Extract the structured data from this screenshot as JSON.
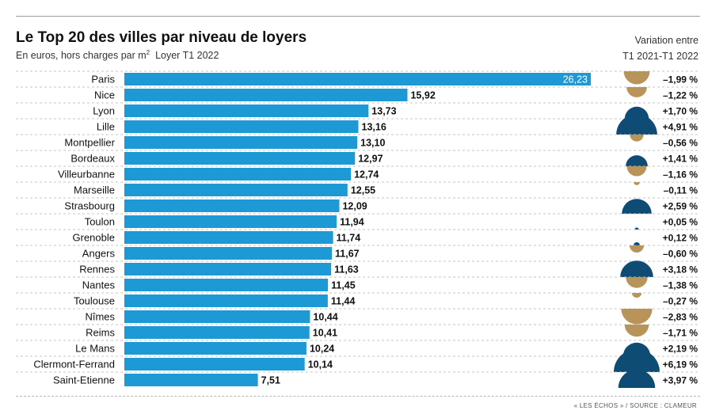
{
  "header": {
    "title": "Le Top 20 des villes par niveau de loyers",
    "subtitle_unit": "En euros, hors charges par m",
    "subtitle_exp": "2",
    "subtitle_series": "Loyer T1 2022",
    "variation_line1": "Variation entre",
    "variation_line2": "T1 2021-T1 2022"
  },
  "source": "« LES ÉCHOS » / SOURCE : CLAMEUR",
  "colors": {
    "bar": "#1d9ad6",
    "increase": "#0f4c75",
    "decrease": "#b8935a",
    "gridline": "#c4c4c4"
  },
  "chart_data": {
    "type": "bar",
    "orientation": "horizontal",
    "title": "Le Top 20 des villes par niveau de loyers",
    "categories": [
      "Paris",
      "Nice",
      "Lyon",
      "Lille",
      "Montpellier",
      "Bordeaux",
      "Villeurbanne",
      "Marseille",
      "Strasbourg",
      "Toulon",
      "Grenoble",
      "Angers",
      "Rennes",
      "Nantes",
      "Toulouse",
      "Nîmes",
      "Reims",
      "Le Mans",
      "Clermont-Ferrand",
      "Saint-Etienne"
    ],
    "values": [
      26.23,
      15.92,
      13.73,
      13.16,
      13.1,
      12.97,
      12.74,
      12.55,
      12.09,
      11.94,
      11.74,
      11.67,
      11.63,
      11.45,
      11.44,
      10.44,
      10.41,
      10.24,
      10.14,
      7.51
    ],
    "value_labels": [
      "26,23",
      "15,92",
      "13,73",
      "13,16",
      "13,10",
      "12,97",
      "12,74",
      "12,55",
      "12,09",
      "11,94",
      "11,74",
      "11,67",
      "11,63",
      "11,45",
      "11,44",
      "10,44",
      "10,41",
      "10,24",
      "10,14",
      "7,51"
    ],
    "variation": [
      -1.99,
      -1.22,
      1.7,
      4.91,
      -0.56,
      1.41,
      -1.16,
      -0.11,
      2.59,
      0.05,
      0.12,
      -0.6,
      3.18,
      -1.38,
      -0.27,
      -2.83,
      -1.71,
      2.19,
      6.19,
      3.97
    ],
    "variation_labels": [
      "–1,99 %",
      "–1,22 %",
      "+1,70 %",
      "+4,91 %",
      "–0,56 %",
      "+1,41 %",
      "–1,16 %",
      "–0,11 %",
      "+2,59 %",
      "+0,05 %",
      "+0,12 %",
      "–0,60 %",
      "+3,18 %",
      "–1,38 %",
      "–0,27 %",
      "–2,83 %",
      "–1,71 %",
      "+2,19 %",
      "+6,19 %",
      "+3,97 %"
    ],
    "legend": "none",
    "grid": "dashed row separators"
  }
}
